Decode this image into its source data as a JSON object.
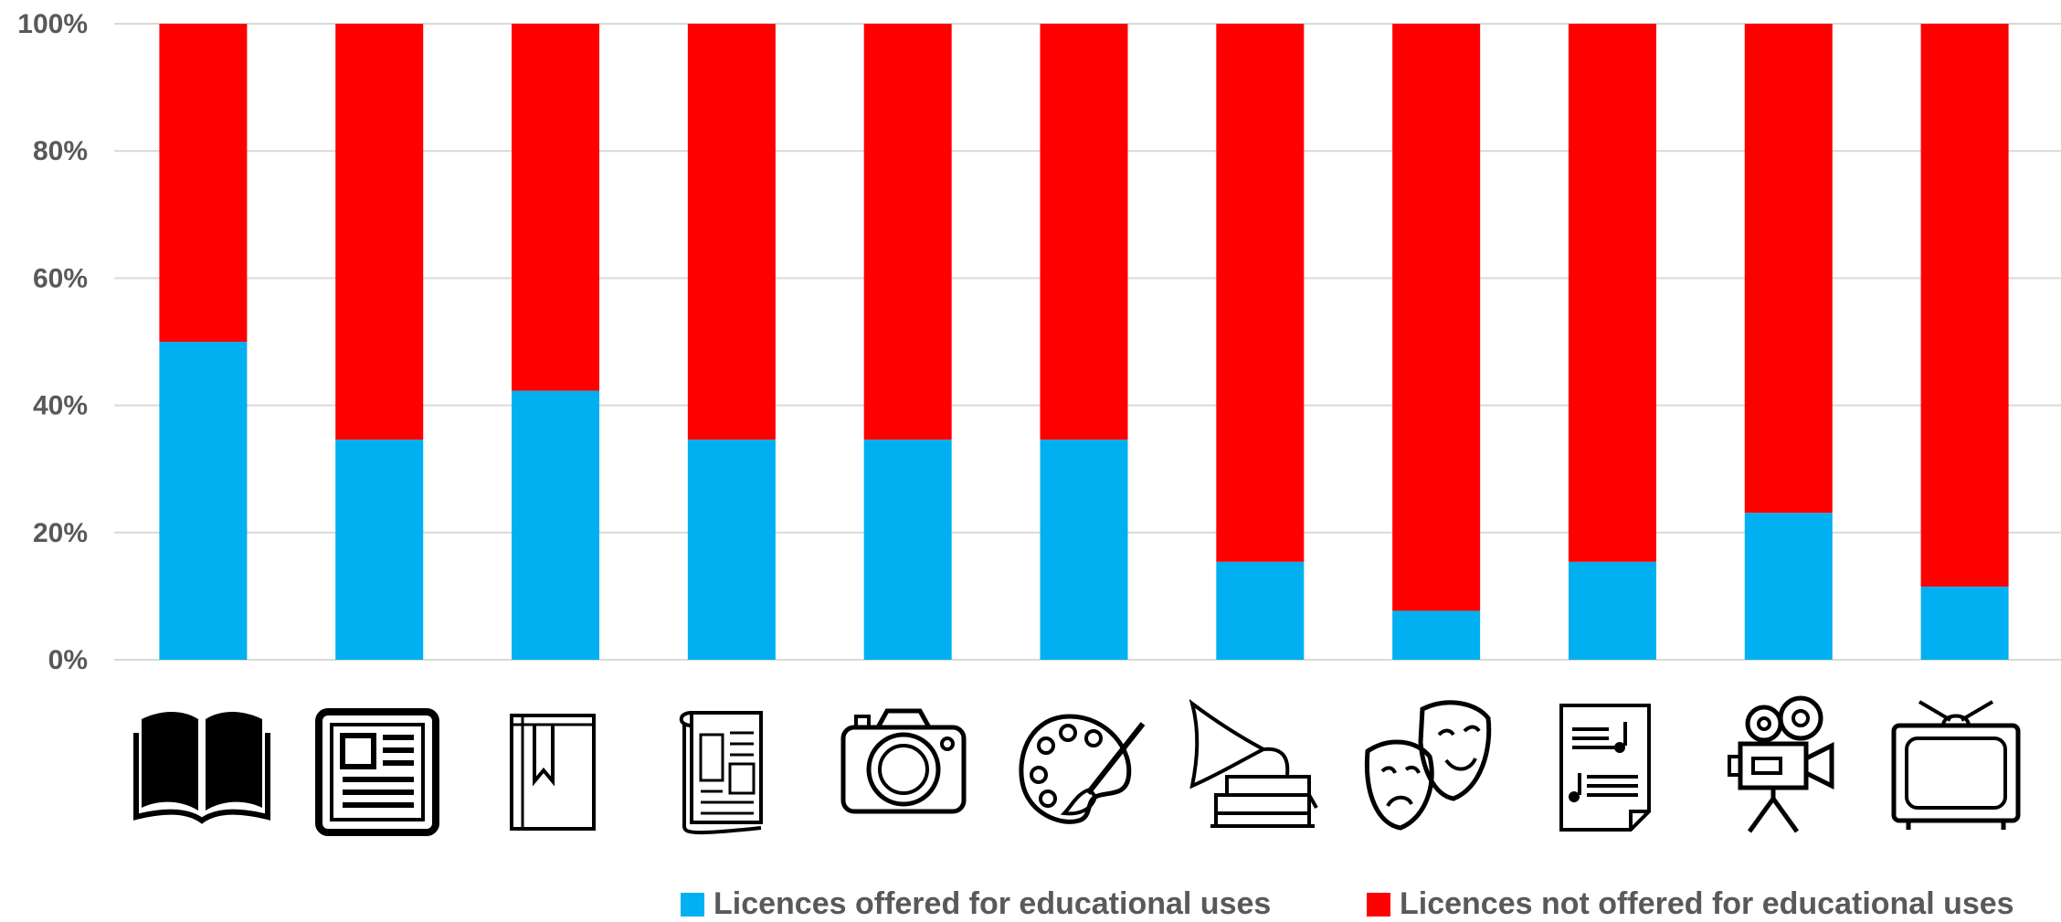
{
  "chart_data": {
    "type": "bar",
    "stacked": true,
    "categories": [
      "book-icon",
      "newspaper-icon",
      "bookmarked-book-icon",
      "magazine-icon",
      "camera-icon",
      "palette-icon",
      "gramophone-icon",
      "theater-masks-icon",
      "sheet-music-icon",
      "film-camera-icon",
      "television-icon"
    ],
    "series": [
      {
        "name": "Licences offered for educational uses",
        "color": "#00b0f0",
        "values": [
          50,
          34.6,
          42.3,
          34.6,
          34.6,
          34.6,
          15.4,
          7.7,
          15.4,
          23.1,
          11.5
        ]
      },
      {
        "name": "Licences not offered for educational uses",
        "color": "#ff0000",
        "values": [
          50,
          65.4,
          57.7,
          65.4,
          65.4,
          65.4,
          84.6,
          92.3,
          84.6,
          76.9,
          88.5
        ]
      }
    ],
    "yticks": [
      "0%",
      "20%",
      "40%",
      "60%",
      "80%",
      "100%"
    ],
    "ylim": [
      0,
      100
    ],
    "grid": true,
    "legend_position": "bottom-right"
  }
}
